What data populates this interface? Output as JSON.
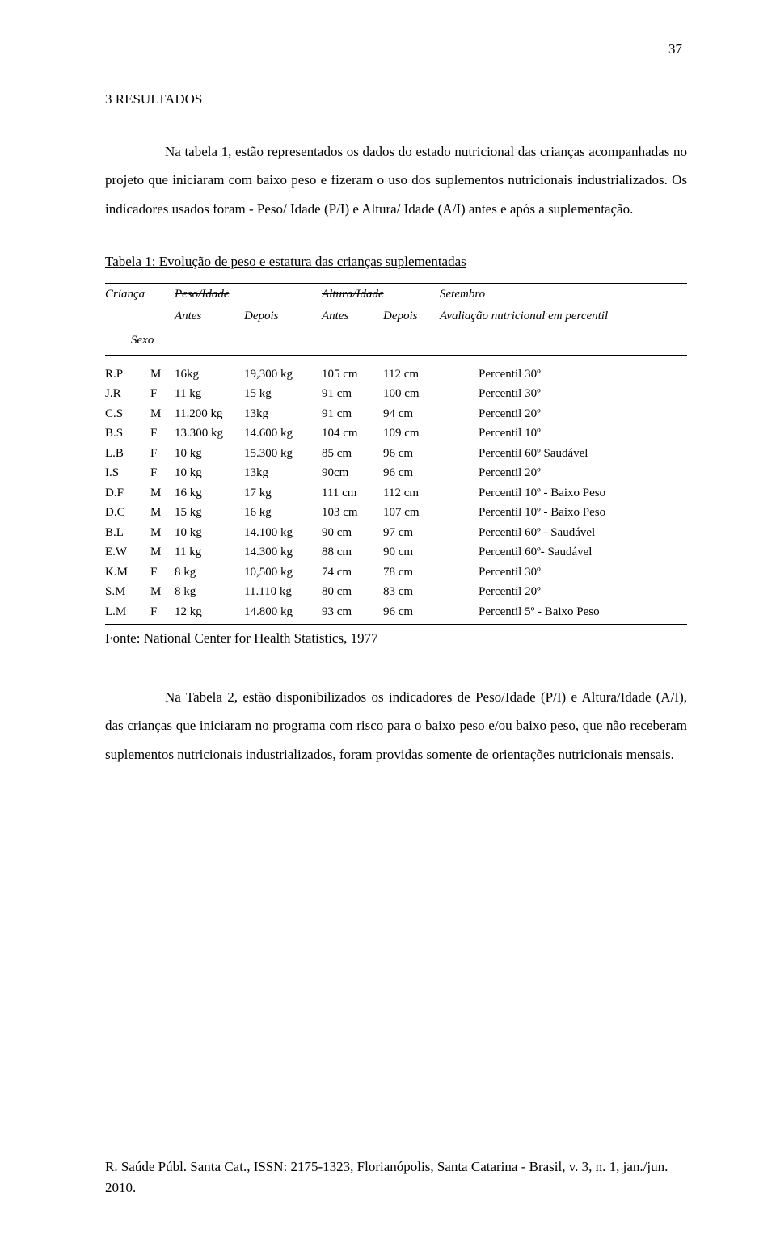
{
  "page_number": "37",
  "section_heading": "3 RESULTADOS",
  "paragraph1": "Na tabela 1, estão representados os dados do estado nutricional das crianças acompanhadas no projeto que iniciaram com baixo peso e fizeram o uso dos suplementos nutricionais industrializados. Os indicadores usados foram - Peso/ Idade (P/I) e Altura/ Idade (A/I) antes e após a suplementação.",
  "table_caption": "Tabela 1: Evolução de peso e estatura das crianças suplementadas",
  "table_header": {
    "col1": "Criança",
    "col1b": "Sexo",
    "col2": "Peso/Idade",
    "col3": "Altura/Idade",
    "col4": "Setembro",
    "sub_antes": "Antes",
    "sub_depois": "Depois",
    "sub_eval": "Avaliação nutricional em percentil"
  },
  "rows": [
    {
      "id": " R.P",
      "s": "M",
      "pa": "16kg",
      "pd": "19,300 kg",
      "aa": "105 cm",
      "ad": "112 cm",
      "sep": "Percentil 30º"
    },
    {
      "id": " J.R",
      "s": "F",
      "pa": "11 kg",
      "pd": "15 kg",
      "aa": "91 cm",
      "ad": "100 cm",
      "sep": "Percentil 30º"
    },
    {
      "id": " C.S",
      "s": "M",
      "pa": "11.200 kg",
      "pd": "13kg",
      "aa": "91 cm",
      "ad": "94 cm",
      "sep": "Percentil 20º"
    },
    {
      "id": " B.S",
      "s": "F",
      "pa": "13.300 kg",
      "pd": "14.600 kg",
      "aa": "104 cm",
      "ad": "109 cm",
      "sep": "Percentil 10º"
    },
    {
      "id": " L.B",
      "s": "F",
      "pa": "10 kg",
      "pd": "15.300 kg",
      "aa": "85 cm",
      "ad": "96 cm",
      "sep": "Percentil 60º Saudável"
    },
    {
      "id": "  I.S",
      "s": "F",
      "pa": "10 kg",
      "pd": "13kg",
      "aa": "90cm",
      "ad": "96 cm",
      "sep": "Percentil 20º"
    },
    {
      "id": " D.F",
      "s": "M",
      "pa": "16 kg",
      "pd": "17 kg",
      "aa": "111 cm",
      "ad": "112 cm",
      "sep": "Percentil 10º - Baixo Peso"
    },
    {
      "id": " D.C",
      "s": "M",
      "pa": "15 kg",
      "pd": "16 kg",
      "aa": "103 cm",
      "ad": "107 cm",
      "sep": "Percentil 10º - Baixo Peso"
    },
    {
      "id": " B.L",
      "s": "M",
      "pa": "10 kg",
      "pd": "14.100 kg",
      "aa": "90 cm",
      "ad": "97 cm",
      "sep": "Percentil 60º - Saudável"
    },
    {
      "id": " E.W",
      "s": "M",
      "pa": "11 kg",
      "pd": "14.300 kg",
      "aa": "88 cm",
      "ad": "90 cm",
      "sep": "Percentil 60º- Saudável"
    },
    {
      "id": " K.M",
      "s": "F",
      "pa": "8 kg",
      "pd": "10,500 kg",
      "aa": "74 cm",
      "ad": "78 cm",
      "sep": "Percentil 30º"
    },
    {
      "id": " S.M",
      "s": "M",
      "pa": "8 kg",
      "pd": "11.110 kg",
      "aa": "80 cm",
      "ad": "83 cm",
      "sep": "Percentil 20º"
    },
    {
      "id": " L.M",
      "s": "F",
      "pa": "12 kg",
      "pd": "14.800 kg",
      "aa": "93 cm",
      "ad": "96 cm",
      "sep": "Percentil 5º - Baixo Peso"
    }
  ],
  "table_source": "Fonte: National Center for Health Statistics, 1977",
  "paragraph2": "Na Tabela 2, estão disponibilizados os indicadores de Peso/Idade (P/I) e Altura/Idade (A/I), das crianças que iniciaram no programa com risco para o baixo peso e/ou baixo peso, que não receberam suplementos nutricionais industrializados, foram providas somente de orientações nutricionais mensais.",
  "footer": "R. Saúde Públ. Santa Cat., ISSN: 2175-1323, Florianópolis, Santa Catarina - Brasil, v. 3, n. 1, jan./jun. 2010."
}
